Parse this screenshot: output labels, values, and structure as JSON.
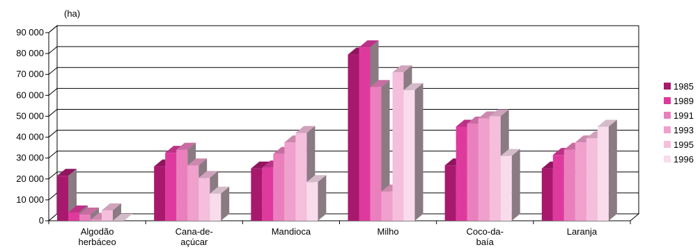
{
  "chart_data": {
    "type": "bar",
    "unit_label": "(ha)",
    "categories": [
      [
        "Algodão",
        "herbáceo"
      ],
      [
        "Cana-de-",
        "açúcar"
      ],
      [
        "Mandioca"
      ],
      [
        "Milho"
      ],
      [
        "Coco-da-",
        "baía"
      ],
      [
        "Laranja"
      ]
    ],
    "series": [
      {
        "name": "1985",
        "color": "#A8196E",
        "values": [
          21500,
          26000,
          25000,
          79500,
          26500,
          25000
        ]
      },
      {
        "name": "1989",
        "color": "#DE3A9E",
        "values": [
          4000,
          32500,
          25500,
          83000,
          45000,
          31500
        ]
      },
      {
        "name": "1991",
        "color": "#EB7FBD",
        "values": [
          3000,
          34000,
          32000,
          64000,
          46500,
          34000
        ]
      },
      {
        "name": "1993",
        "color": "#F0A0CC",
        "values": [
          500,
          26500,
          37500,
          14000,
          49000,
          37500
        ]
      },
      {
        "name": "1995",
        "color": "#F5BEDD",
        "values": [
          5000,
          20500,
          42000,
          71000,
          50000,
          39500
        ]
      },
      {
        "name": "1996",
        "color": "#F9DCEC",
        "values": [
          0,
          13000,
          18500,
          62500,
          31000,
          45000
        ]
      }
    ],
    "y_ticks": [
      "0",
      "10 000",
      "20 000",
      "30 000",
      "40 000",
      "50 000",
      "60 000",
      "70 000",
      "80 000",
      "90 000"
    ],
    "ylim": [
      0,
      90000
    ],
    "grid": true,
    "legend_position": "right"
  }
}
